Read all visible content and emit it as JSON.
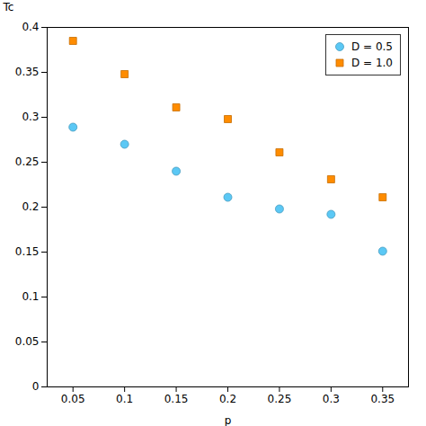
{
  "chart_data": {
    "type": "scatter",
    "xlabel": "p",
    "ylabel": "Tc",
    "x": [
      0.05,
      0.1,
      0.15,
      0.2,
      0.25,
      0.3,
      0.35
    ],
    "series": [
      {
        "name": "D = 0.5",
        "color": "#5BC8F5",
        "marker": "circle",
        "values": [
          0.289,
          0.27,
          0.24,
          0.211,
          0.198,
          0.192,
          0.151
        ]
      },
      {
        "name": "D = 1.0",
        "color": "#FF8C00",
        "marker": "square",
        "values": [
          0.385,
          0.348,
          0.311,
          0.298,
          0.261,
          0.231,
          0.211
        ]
      }
    ],
    "xlim": [
      0.025,
      0.375
    ],
    "ylim": [
      0.0,
      0.4
    ],
    "xticks": [
      0.05,
      0.1,
      0.15,
      0.2,
      0.25,
      0.3,
      0.35
    ],
    "yticks": [
      0,
      0.05,
      0.1,
      0.15,
      0.2,
      0.25,
      0.3,
      0.35,
      0.4
    ],
    "legend": "upper right",
    "grid": false
  }
}
